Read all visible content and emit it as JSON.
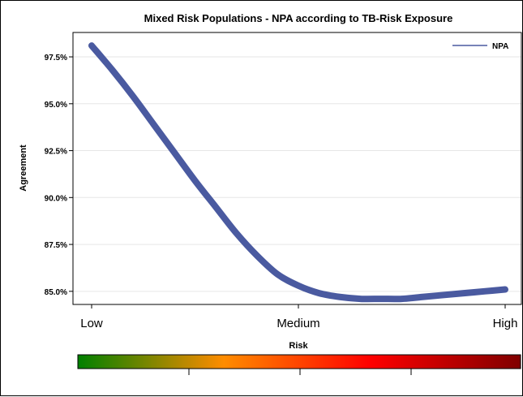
{
  "chart_data": {
    "type": "line",
    "title": "Mixed Risk Populations  - NPA according to TB-Risk Exposure",
    "xlabel": "Risk",
    "ylabel": "Agreement",
    "categories": [
      "Low",
      "Medium",
      "High"
    ],
    "x_range": [
      0,
      1
    ],
    "ylim": [
      84.3,
      98.8
    ],
    "y_ticks": [
      85.0,
      87.5,
      90.0,
      92.5,
      95.0,
      97.5
    ],
    "y_tick_labels": [
      "85.0%",
      "87.5%",
      "90.0%",
      "92.5%",
      "95.0%",
      "97.5%"
    ],
    "grid": "horizontal",
    "legend": {
      "position": "top-right",
      "entries": [
        "NPA"
      ]
    },
    "series": [
      {
        "name": "NPA",
        "color": "#4a5aa0",
        "x": [
          0.0,
          0.05,
          0.1,
          0.15,
          0.2,
          0.25,
          0.3,
          0.35,
          0.4,
          0.45,
          0.5,
          0.55,
          0.6,
          0.65,
          0.7,
          0.75,
          0.8,
          0.85,
          0.9,
          0.95,
          1.0
        ],
        "values": [
          98.1,
          96.8,
          95.4,
          93.9,
          92.4,
          90.9,
          89.5,
          88.1,
          86.9,
          85.9,
          85.3,
          84.9,
          84.7,
          84.6,
          84.6,
          84.6,
          84.7,
          84.8,
          84.9,
          85.0,
          85.1
        ]
      }
    ]
  },
  "colorbar": {
    "colors": [
      "#008000",
      "#ff8c00",
      "#ff0000",
      "#800000"
    ]
  }
}
